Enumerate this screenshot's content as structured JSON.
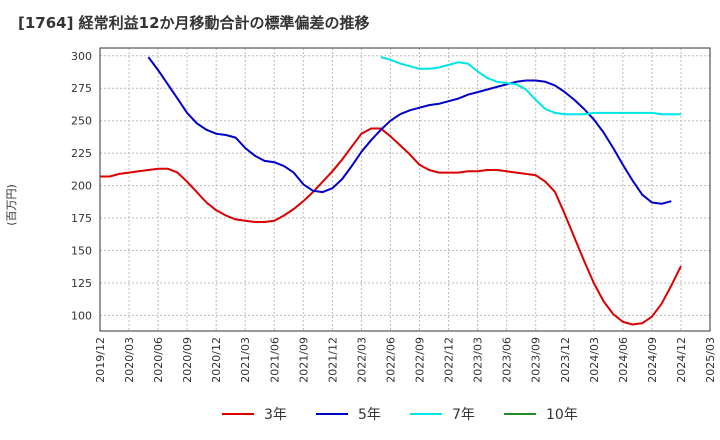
{
  "chart_data": {
    "type": "line",
    "title": "[1764]  経常利益12か月移動合計の標準偏差の推移",
    "ylabel": "(百万円)",
    "ylim": [
      88,
      306
    ],
    "yticks": [
      100,
      125,
      150,
      175,
      200,
      225,
      250,
      275,
      300
    ],
    "xticks": [
      "2019/12",
      "2020/03",
      "2020/06",
      "2020/09",
      "2020/12",
      "2021/03",
      "2021/06",
      "2021/09",
      "2021/12",
      "2022/03",
      "2022/06",
      "2022/09",
      "2022/12",
      "2023/03",
      "2023/06",
      "2023/09",
      "2023/12",
      "2024/03",
      "2024/06",
      "2024/09",
      "2024/12",
      "2025/03"
    ],
    "grid": true,
    "legend_position": "bottom",
    "series": [
      {
        "name": "3年",
        "color": "#dd0000",
        "x_start": "2019/12",
        "values": [
          207,
          207,
          209,
          210,
          211,
          212,
          213,
          213,
          210,
          203,
          195,
          187,
          181,
          177,
          174,
          173,
          172,
          172,
          173,
          177,
          182,
          188,
          195,
          203,
          211,
          220,
          230,
          240,
          244,
          244,
          238,
          231,
          224,
          216,
          212,
          210,
          210,
          210,
          211,
          211,
          212,
          212,
          211,
          210,
          209,
          208,
          203,
          195,
          178,
          160,
          142,
          125,
          111,
          101,
          95,
          93,
          94,
          99,
          109,
          123,
          138
        ]
      },
      {
        "name": "5年",
        "color": "#0000cc",
        "x_start": "2020/05",
        "values": [
          299,
          289,
          278,
          267,
          256,
          248,
          243,
          240,
          239,
          237,
          229,
          223,
          219,
          218,
          215,
          210,
          201,
          196,
          195,
          198,
          205,
          215,
          226,
          235,
          243,
          250,
          255,
          258,
          260,
          262,
          263,
          265,
          267,
          270,
          272,
          274,
          276,
          278,
          280,
          281,
          281,
          280,
          277,
          272,
          266,
          259,
          251,
          241,
          229,
          216,
          204,
          193,
          187,
          186,
          188
        ]
      },
      {
        "name": "7年",
        "color": "#00e5e5",
        "x_start": "2022/05",
        "values": [
          299,
          297,
          294,
          292,
          290,
          290,
          291,
          293,
          295,
          294,
          288,
          283,
          280,
          279,
          278,
          274,
          266,
          259,
          256,
          255,
          255,
          255,
          256,
          256,
          256,
          256,
          256,
          256,
          256,
          255,
          255,
          255
        ]
      },
      {
        "name": "10年",
        "color": "#228b22",
        "x_start": "2019/12",
        "values": []
      }
    ]
  }
}
